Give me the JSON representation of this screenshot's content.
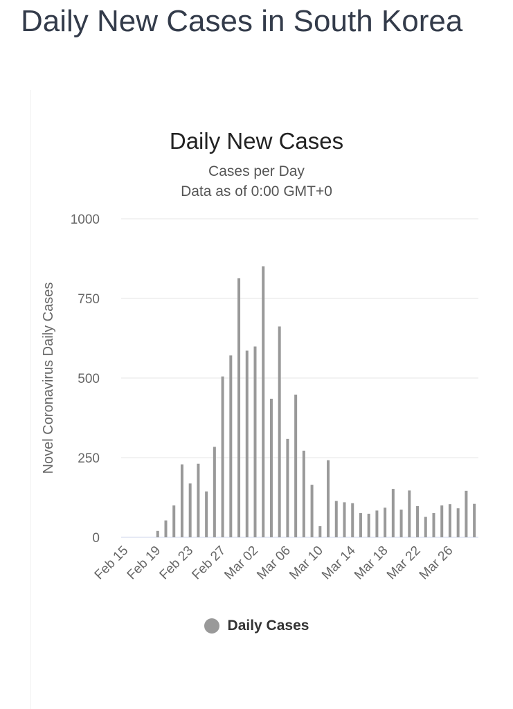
{
  "page_title": "Daily New Cases in South Korea",
  "chart_data": {
    "type": "bar",
    "title": "Daily New Cases",
    "subtitle": "Cases per Day",
    "subtitle2": "Data as of 0:00 GMT+0",
    "ylabel": "Novel Coronavirus Daily Cases",
    "xlabel": "",
    "ylim": [
      0,
      1000
    ],
    "yticks": [
      0,
      250,
      500,
      750,
      1000
    ],
    "categories": [
      "Feb 15",
      "Feb 16",
      "Feb 17",
      "Feb 18",
      "Feb 19",
      "Feb 20",
      "Feb 21",
      "Feb 22",
      "Feb 23",
      "Feb 24",
      "Feb 25",
      "Feb 26",
      "Feb 27",
      "Feb 28",
      "Feb 29",
      "Mar 01",
      "Mar 02",
      "Mar 03",
      "Mar 04",
      "Mar 05",
      "Mar 06",
      "Mar 07",
      "Mar 08",
      "Mar 09",
      "Mar 10",
      "Mar 11",
      "Mar 12",
      "Mar 13",
      "Mar 14",
      "Mar 15",
      "Mar 16",
      "Mar 17",
      "Mar 18",
      "Mar 19",
      "Mar 20",
      "Mar 21",
      "Mar 22",
      "Mar 23",
      "Mar 24",
      "Mar 25",
      "Mar 26",
      "Mar 27",
      "Mar 28",
      "Mar 29"
    ],
    "x_tick_labels": [
      "Feb 15",
      "Feb 19",
      "Feb 23",
      "Feb 27",
      "Mar 02",
      "Mar 06",
      "Mar 10",
      "Mar 14",
      "Mar 18",
      "Mar 22",
      "Mar 26"
    ],
    "series": [
      {
        "name": "Daily Cases",
        "color": "#999999",
        "values": [
          0,
          0,
          0,
          0,
          20,
          53,
          100,
          229,
          169,
          231,
          144,
          284,
          505,
          571,
          813,
          586,
          599,
          851,
          435,
          662,
          309,
          448,
          272,
          165,
          35,
          242,
          114,
          110,
          107,
          76,
          74,
          84,
          93,
          152,
          87,
          147,
          98,
          64,
          76,
          100,
          104,
          91,
          146,
          105
        ]
      }
    ],
    "legend": {
      "position": "bottom-center"
    },
    "grid": true
  }
}
